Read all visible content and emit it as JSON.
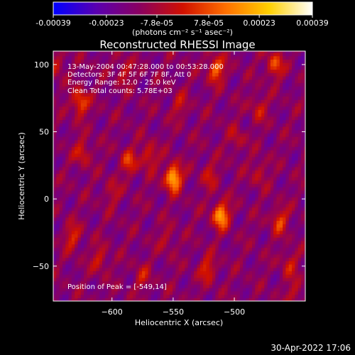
{
  "chart_data": {
    "type": "heatmap",
    "title": "Reconstructed RHESSI Image",
    "xlabel": "Heliocentric X (arcsec)",
    "ylabel": "Heliocentric Y (arcsec)",
    "xlim": [
      -648,
      -442
    ],
    "ylim": [
      -76,
      110
    ],
    "xticks": [
      -600,
      -550,
      -500
    ],
    "yticks": [
      -50,
      0,
      50,
      100
    ],
    "colorbar": {
      "min": -0.00039,
      "max": 0.00039,
      "ticks": [
        -0.00039,
        -0.00023,
        -7.8e-05,
        7.8e-05,
        0.00023,
        0.00039
      ],
      "tick_labels": [
        "-0.00039",
        "-0.00023",
        "-7.8e-05",
        "7.8e-05",
        "0.00023",
        "0.00039"
      ],
      "unit_label": "(photons cm⁻² s⁻¹ asec⁻²)",
      "colors": [
        "#0000ff",
        "#5a00b0",
        "#8a0060",
        "#d01000",
        "#ff7000",
        "#ffd000",
        "#ffffff"
      ]
    },
    "info_lines": [
      "13-May-2004 00:47:28.000 to 00:53:28.000",
      "Detectors: 3F 4F 5F 6F 7F 8F, Att 0",
      "Energy Range: 12.0 - 25.0 keV",
      "Clean    Total counts: 5.78E+03"
    ],
    "peak_label": "Position of Peak = [-549,14]",
    "peak_position": [
      -549,
      14
    ],
    "sources": [
      {
        "x": -550,
        "y": 16,
        "amp": 0.00039
      },
      {
        "x": -511,
        "y": -12,
        "amp": 0.00034
      },
      {
        "x": -626,
        "y": 72,
        "amp": 0.00024
      },
      {
        "x": -515,
        "y": 97,
        "amp": 0.00026
      },
      {
        "x": -467,
        "y": 100,
        "amp": 0.00021
      },
      {
        "x": -570,
        "y": 32,
        "amp": 0.00017
      },
      {
        "x": -586,
        "y": 28,
        "amp": 0.00017
      },
      {
        "x": -624,
        "y": 35,
        "amp": 0.00015
      },
      {
        "x": -632,
        "y": -28,
        "amp": 0.00016
      },
      {
        "x": -610,
        "y": -45,
        "amp": 0.00014
      },
      {
        "x": -522,
        "y": -52,
        "amp": 0.00017
      },
      {
        "x": -463,
        "y": -16,
        "amp": 0.00019
      },
      {
        "x": -455,
        "y": -48,
        "amp": 0.00013
      },
      {
        "x": -590,
        "y": 95,
        "amp": 0.00013
      },
      {
        "x": -545,
        "y": 70,
        "amp": 0.00011
      },
      {
        "x": -498,
        "y": 45,
        "amp": 0.0001
      },
      {
        "x": -480,
        "y": 68,
        "amp": 0.00013
      },
      {
        "x": -520,
        "y": 18,
        "amp": 0.00012
      },
      {
        "x": -575,
        "y": -58,
        "amp": 0.00011
      },
      {
        "x": -600,
        "y": 5,
        "amp": 0.0001
      },
      {
        "x": -480,
        "y": 20,
        "amp": 0.00011
      },
      {
        "x": -645,
        "y": 100,
        "amp": 0.00012
      },
      {
        "x": -555,
        "y": -30,
        "amp": 9e-05
      },
      {
        "x": -450,
        "y": -70,
        "amp": 0.00011
      }
    ]
  },
  "footer_timestamp": "30-Apr-2022 17:06"
}
